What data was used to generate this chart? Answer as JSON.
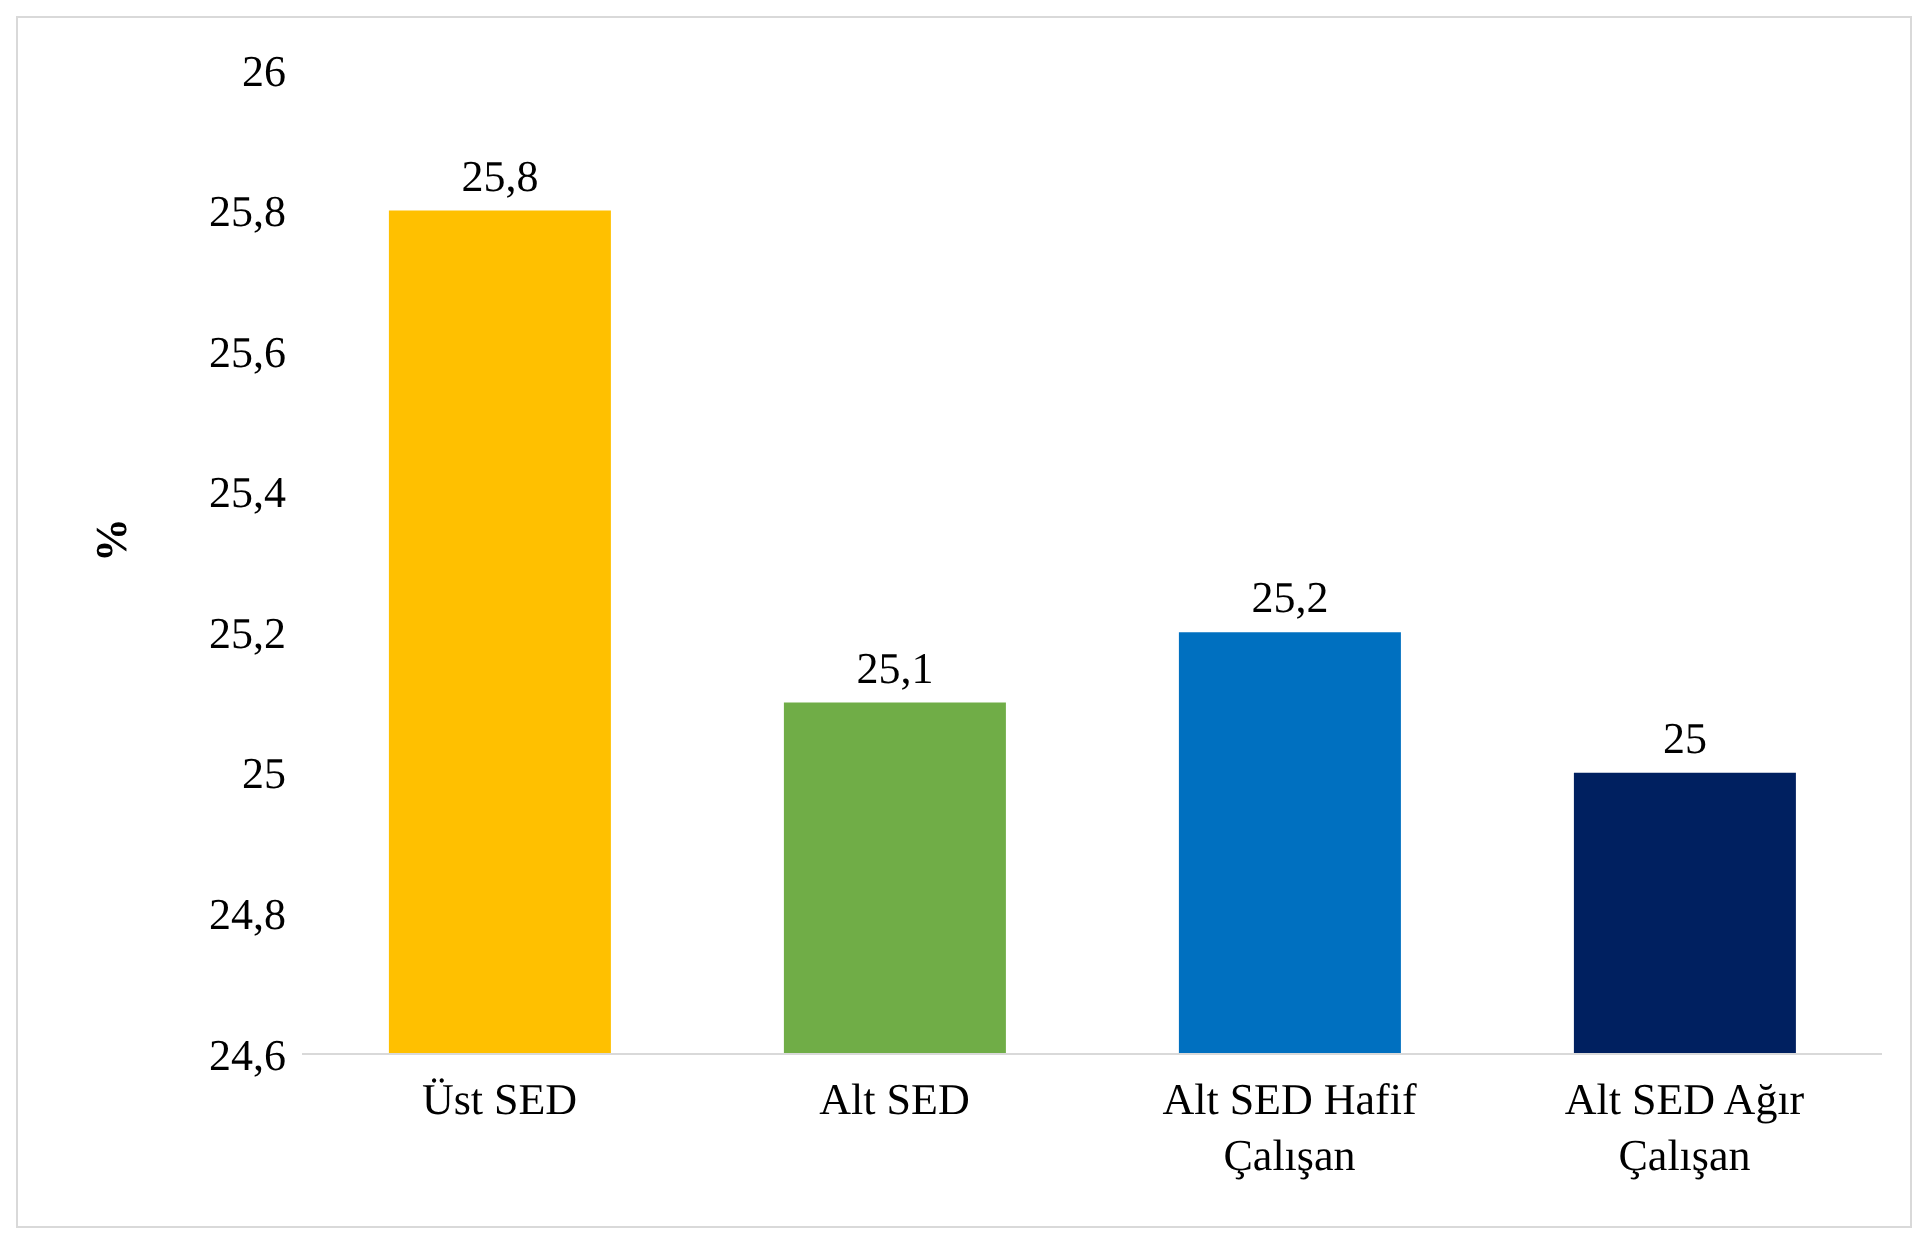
{
  "chart_data": {
    "type": "bar",
    "ylabel": "%",
    "categories": [
      "Üst SED",
      "Alt SED",
      "Alt SED Hafif Çalışan",
      "Alt SED Ağır Çalışan"
    ],
    "values": [
      25.8,
      25.1,
      25.2,
      25
    ],
    "colors": [
      "#ffc000",
      "#70ad47",
      "#0070c0",
      "#002060"
    ],
    "value_labels": [
      "25,8",
      "25,1",
      "25,2",
      "25"
    ],
    "ylim": [
      24.6,
      26
    ],
    "yticks": [
      {
        "value": 24.6,
        "label": "24,6"
      },
      {
        "value": 24.8,
        "label": "24,8"
      },
      25,
      {
        "value": 25.2,
        "label": "25,2"
      },
      {
        "value": 25.4,
        "label": "25,4"
      },
      {
        "value": 25.6,
        "label": "25,6"
      },
      {
        "value": 25.8,
        "label": "25,8"
      },
      26
    ],
    "grid": false,
    "legend": false
  }
}
